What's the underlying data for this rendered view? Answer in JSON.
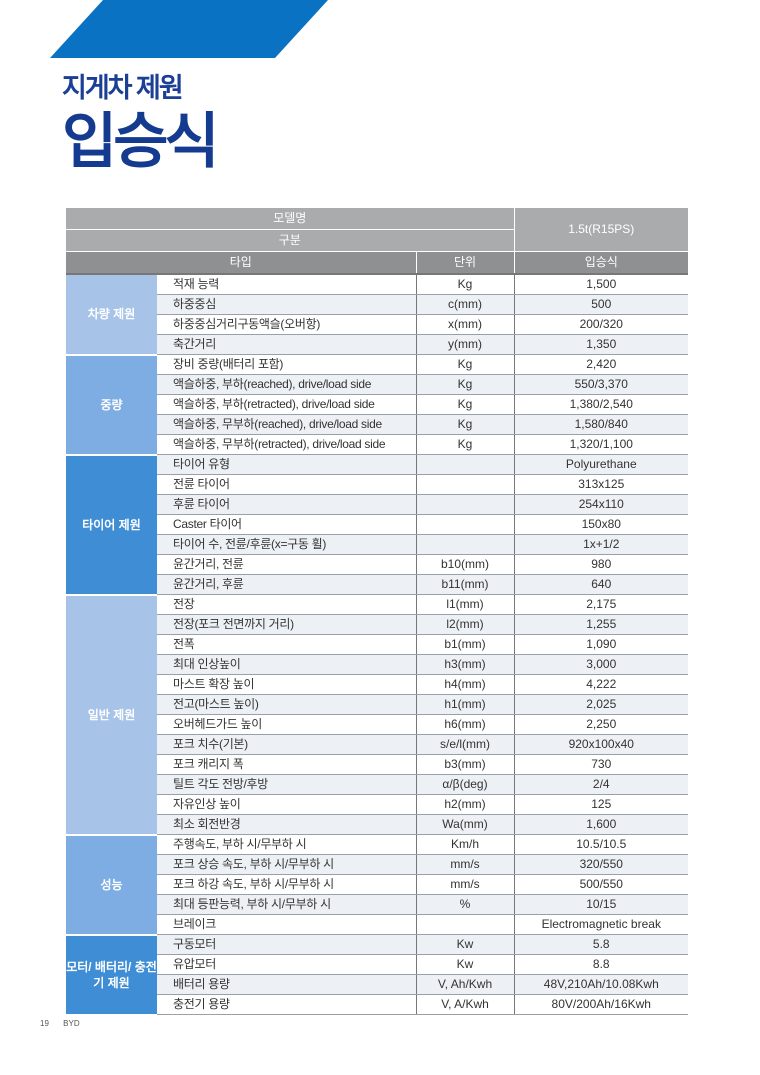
{
  "header": {
    "subtitle": "지게차 제원",
    "title": "입승식",
    "banner_color": "#0a72c2"
  },
  "table": {
    "model_label": "모델명",
    "category_label": "구분",
    "type_label": "타입",
    "unit_label": "단위",
    "model_value": "1.5t(R15PS)",
    "type_value": "입승식",
    "groups": [
      {
        "name": "차량 제원",
        "color": "#a7c3e8",
        "rows": [
          {
            "label": "적재 능력",
            "unit": "Kg",
            "value": "1,500"
          },
          {
            "label": "하중중심",
            "unit": "c(mm)",
            "value": "500"
          },
          {
            "label": "하중중심거리구동액슬(오버항)",
            "unit": "x(mm)",
            "value": "200/320"
          },
          {
            "label": "축간거리",
            "unit": "y(mm)",
            "value": "1,350"
          }
        ]
      },
      {
        "name": "중량",
        "color": "#7dade2",
        "rows": [
          {
            "label": "장비 중량(배터리 포함)",
            "unit": "Kg",
            "value": "2,420"
          },
          {
            "label": "액슬하중, 부하(reached), drive/load side",
            "unit": "Kg",
            "value": "550/3,370"
          },
          {
            "label": "액슬하중, 부하(retracted), drive/load side",
            "unit": "Kg",
            "value": "1,380/2,540"
          },
          {
            "label": "액슬하중, 무부하(reached), drive/load side",
            "unit": "Kg",
            "value": "1,580/840"
          },
          {
            "label": "액슬하중, 무부하(retracted), drive/load side",
            "unit": "Kg",
            "value": "1,320/1,100"
          }
        ]
      },
      {
        "name": "타이어 제원",
        "color": "#3f8ed5",
        "rows": [
          {
            "label": "타이어 유형",
            "unit": "",
            "value": "Polyurethane"
          },
          {
            "label": "전륜 타이어",
            "unit": "",
            "value": "313x125"
          },
          {
            "label": "후륜 타이어",
            "unit": "",
            "value": "254x110"
          },
          {
            "label": "Caster 타이어",
            "unit": "",
            "value": "150x80"
          },
          {
            "label": "타이어 수, 전륜/후륜(x=구동 휠)",
            "unit": "",
            "value": "1x+1/2"
          },
          {
            "label": "윤간거리, 전륜",
            "unit": "b10(mm)",
            "value": "980"
          },
          {
            "label": "윤간거리, 후륜",
            "unit": "b11(mm)",
            "value": "640"
          }
        ]
      },
      {
        "name": "일반 제원",
        "color": "#a7c3e8",
        "rows": [
          {
            "label": "전장",
            "unit": "l1(mm)",
            "value": "2,175"
          },
          {
            "label": "전장(포크 전면까지 거리)",
            "unit": "l2(mm)",
            "value": "1,255"
          },
          {
            "label": "전폭",
            "unit": "b1(mm)",
            "value": "1,090"
          },
          {
            "label": "최대 인상높이",
            "unit": "h3(mm)",
            "value": "3,000"
          },
          {
            "label": "마스트 확장 높이",
            "unit": "h4(mm)",
            "value": "4,222"
          },
          {
            "label": "전고(마스트 높이)",
            "unit": "h1(mm)",
            "value": "2,025"
          },
          {
            "label": "오버헤드가드 높이",
            "unit": "h6(mm)",
            "value": "2,250"
          },
          {
            "label": "포크 치수(기본)",
            "unit": "s/e/l(mm)",
            "value": "920x100x40"
          },
          {
            "label": "포크 캐리지 폭",
            "unit": "b3(mm)",
            "value": "730"
          },
          {
            "label": "틸트 각도 전방/후방",
            "unit": "α/β(deg)",
            "value": "2/4"
          },
          {
            "label": "자유인상 높이",
            "unit": "h2(mm)",
            "value": "125"
          },
          {
            "label": "최소 회전반경",
            "unit": "Wa(mm)",
            "value": "1,600"
          }
        ]
      },
      {
        "name": "성능",
        "color": "#7dade2",
        "rows": [
          {
            "label": "주행속도, 부하 시/무부하 시",
            "unit": "Km/h",
            "value": "10.5/10.5"
          },
          {
            "label": "포크 상승 속도, 부하 시/무부하 시",
            "unit": "mm/s",
            "value": "320/550"
          },
          {
            "label": "포크 하강 속도, 부하 시/무부하 시",
            "unit": "mm/s",
            "value": "500/550"
          },
          {
            "label": "최대 등판능력, 부하 시/무부하 시",
            "unit": "%",
            "value": "10/15"
          },
          {
            "label": "브레이크",
            "unit": "",
            "value": "Electromagnetic break"
          }
        ]
      },
      {
        "name": "모터/ 배터리/ 충전기 제원",
        "color": "#3f8ed5",
        "rows": [
          {
            "label": "구동모터",
            "unit": "Kw",
            "value": "5.8"
          },
          {
            "label": "유압모터",
            "unit": "Kw",
            "value": "8.8"
          },
          {
            "label": "배터리 용량",
            "unit": "V, Ah/Kwh",
            "value": "48V,210Ah/10.08Kwh"
          },
          {
            "label": "충전기 용량",
            "unit": "V, A/Kwh",
            "value": "80V/200Ah/16Kwh"
          }
        ]
      }
    ]
  },
  "footer": {
    "page": "19",
    "brand": "BYD"
  }
}
